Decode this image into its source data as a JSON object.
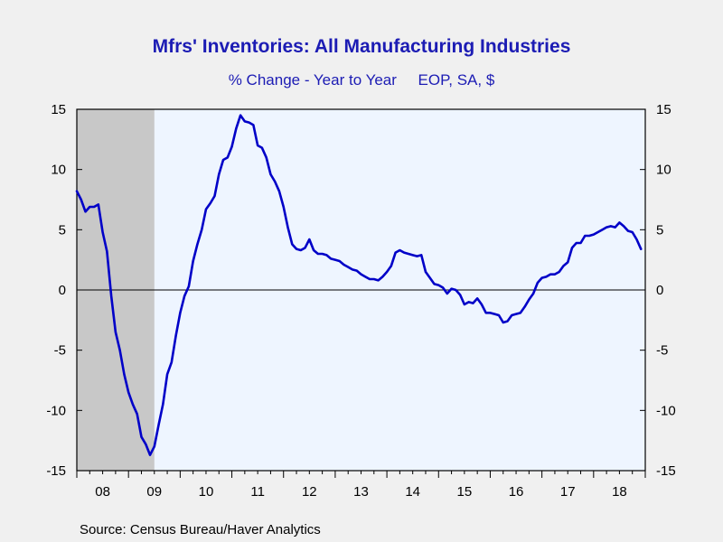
{
  "title": "Mfrs' Inventories: All Manufacturing Industries",
  "subtitle": "% Change - Year to Year     EOP, SA, $",
  "source": "Source:  Census Bureau/Haver Analytics",
  "colors": {
    "line": "#0000c8",
    "plot_bg": "#eef5ff",
    "recession": "#c8c8c8",
    "title": "#1c1cb4"
  },
  "chart_data": {
    "type": "line",
    "title": "Mfrs' Inventories: All Manufacturing Industries",
    "subtitle": "% Change - Year to Year     EOP, SA, $",
    "x_range": [
      "2008-01",
      "2018-12"
    ],
    "ylim": [
      -15,
      15
    ],
    "y_ticks": [
      15,
      10,
      5,
      0,
      -5,
      -10,
      -15
    ],
    "y_tick_labels": [
      "15",
      "10",
      "5",
      "0",
      "-5",
      "-10",
      "-15"
    ],
    "x_tick_labels": [
      "08",
      "09",
      "10",
      "11",
      "12",
      "13",
      "14",
      "15",
      "16",
      "17",
      "18"
    ],
    "dual_y_axis": true,
    "zero_line": true,
    "recession_shading": {
      "start": "2008-01",
      "end": "2009-06"
    },
    "series": [
      {
        "x": [
          "2008-01",
          "2008-02",
          "2008-03",
          "2008-04",
          "2008-05",
          "2008-06",
          "2008-07",
          "2008-08",
          "2008-09",
          "2008-10",
          "2008-11",
          "2008-12",
          "2009-01",
          "2009-02",
          "2009-03",
          "2009-04",
          "2009-05",
          "2009-06",
          "2009-07",
          "2009-08",
          "2009-09",
          "2009-10",
          "2009-11",
          "2009-12",
          "2010-01",
          "2010-02",
          "2010-03",
          "2010-04",
          "2010-05",
          "2010-06",
          "2010-07",
          "2010-08",
          "2010-09",
          "2010-10",
          "2010-11",
          "2010-12",
          "2011-01",
          "2011-02",
          "2011-03",
          "2011-04",
          "2011-05",
          "2011-06",
          "2011-07",
          "2011-08",
          "2011-09",
          "2011-10",
          "2011-11",
          "2011-12",
          "2012-01",
          "2012-02",
          "2012-03",
          "2012-04",
          "2012-05",
          "2012-06",
          "2012-07",
          "2012-08",
          "2012-09",
          "2012-10",
          "2012-11",
          "2012-12",
          "2013-01",
          "2013-02",
          "2013-03",
          "2013-04",
          "2013-05",
          "2013-06",
          "2013-07",
          "2013-08",
          "2013-09",
          "2013-10",
          "2013-11",
          "2013-12",
          "2014-01",
          "2014-02",
          "2014-03",
          "2014-04",
          "2014-05",
          "2014-06",
          "2014-07",
          "2014-08",
          "2014-09",
          "2014-10",
          "2014-11",
          "2014-12",
          "2015-01",
          "2015-02",
          "2015-03",
          "2015-04",
          "2015-05",
          "2015-06",
          "2015-07",
          "2015-08",
          "2015-09",
          "2015-10",
          "2015-11",
          "2015-12",
          "2016-01",
          "2016-02",
          "2016-03",
          "2016-04",
          "2016-05",
          "2016-06",
          "2016-07",
          "2016-08",
          "2016-09",
          "2016-10",
          "2016-11",
          "2016-12",
          "2017-01",
          "2017-02",
          "2017-03",
          "2017-04",
          "2017-05",
          "2017-06",
          "2017-07",
          "2017-08",
          "2017-09",
          "2017-10",
          "2017-11",
          "2017-12",
          "2018-01",
          "2018-02",
          "2018-03",
          "2018-04",
          "2018-05",
          "2018-06",
          "2018-07",
          "2018-08",
          "2018-09",
          "2018-10",
          "2018-11",
          "2018-12"
        ],
        "values": [
          8.2,
          7.5,
          6.5,
          6.9,
          6.9,
          7.1,
          4.8,
          3.2,
          -0.5,
          -3.5,
          -5.0,
          -7.0,
          -8.5,
          -9.5,
          -10.3,
          -12.2,
          -12.8,
          -13.7,
          -13.0,
          -11.2,
          -9.5,
          -7.0,
          -6.0,
          -3.8,
          -1.9,
          -0.5,
          0.3,
          2.4,
          3.8,
          5.0,
          6.7,
          7.2,
          7.8,
          9.6,
          10.8,
          11.0,
          11.9,
          13.4,
          14.5,
          14.0,
          13.9,
          13.7,
          12.0,
          11.8,
          11.0,
          9.6,
          9.0,
          8.2,
          6.9,
          5.2,
          3.8,
          3.4,
          3.3,
          3.5,
          4.2,
          3.3,
          3.0,
          3.0,
          2.9,
          2.6,
          2.5,
          2.4,
          2.1,
          1.9,
          1.7,
          1.6,
          1.3,
          1.1,
          0.9,
          0.9,
          0.8,
          1.1,
          1.5,
          2.0,
          3.1,
          3.3,
          3.1,
          3.0,
          2.9,
          2.8,
          2.9,
          1.5,
          1.0,
          0.5,
          0.4,
          0.2,
          -0.3,
          0.1,
          0.0,
          -0.4,
          -1.2,
          -1.0,
          -1.1,
          -0.7,
          -1.2,
          -1.9,
          -1.9,
          -2.0,
          -2.1,
          -2.7,
          -2.6,
          -2.1,
          -2.0,
          -1.9,
          -1.4,
          -0.8,
          -0.3,
          0.6,
          1.0,
          1.1,
          1.3,
          1.3,
          1.5,
          2.0,
          2.3,
          3.5,
          3.9,
          3.9,
          4.5,
          4.5,
          4.6,
          4.8,
          5.0,
          5.2,
          5.3,
          5.2,
          5.6,
          5.3,
          4.9,
          4.8,
          4.2,
          3.4
        ]
      }
    ]
  }
}
